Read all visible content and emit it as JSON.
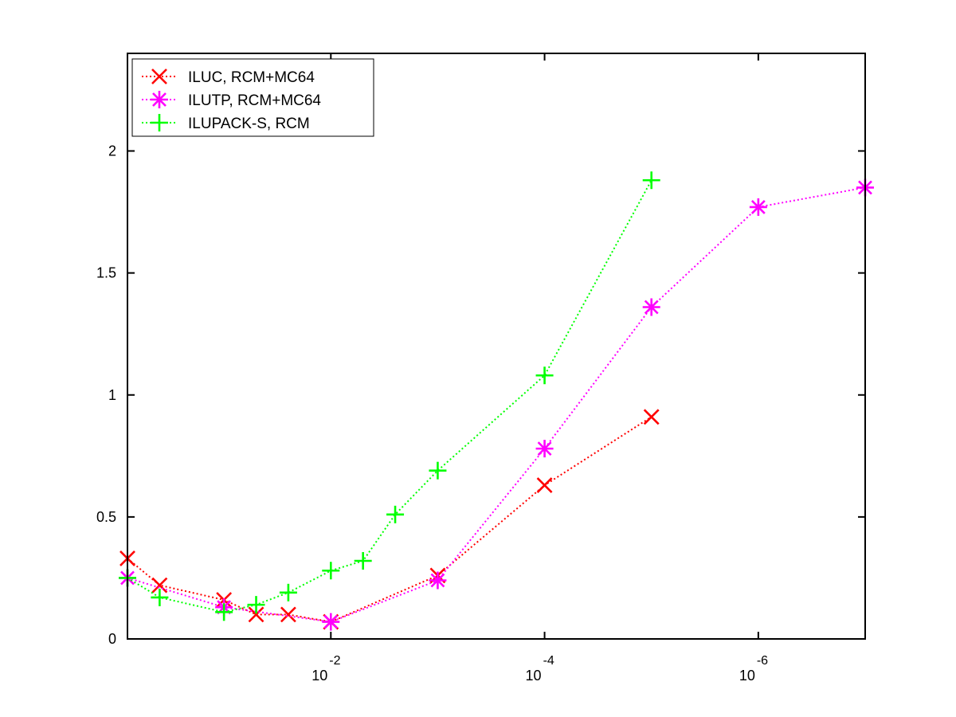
{
  "chart_data": {
    "type": "line",
    "x_scale": "log-reversed",
    "xlim": [
      0.8,
      1e-07
    ],
    "ylim": [
      0,
      2.4
    ],
    "x_ticks": [
      {
        "value": 0.01,
        "base": "10",
        "exponent": "-2"
      },
      {
        "value": 0.0001,
        "base": "10",
        "exponent": "-4"
      },
      {
        "value": 1e-06,
        "base": "10",
        "exponent": "-6"
      }
    ],
    "y_ticks": [
      {
        "value": 0,
        "label": "0"
      },
      {
        "value": 0.5,
        "label": "0.5"
      },
      {
        "value": 1,
        "label": "1"
      },
      {
        "value": 1.5,
        "label": "1.5"
      },
      {
        "value": 2,
        "label": "2"
      }
    ],
    "grid": false,
    "legend_position": "top-left",
    "series": [
      {
        "name": "ILUC, RCM+MC64",
        "color": "#ff0000",
        "marker": "x",
        "x": [
          0.8,
          0.4,
          0.1,
          0.05,
          0.025,
          0.01,
          0.001,
          0.0001,
          1e-05
        ],
        "y": [
          0.33,
          0.22,
          0.16,
          0.1,
          0.1,
          0.07,
          0.26,
          0.63,
          0.91
        ]
      },
      {
        "name": "ILUTP, RCM+MC64",
        "color": "#ff00ff",
        "marker": "asterisk",
        "x": [
          0.8,
          0.1,
          0.01,
          0.001,
          0.0001,
          1e-05,
          1e-06,
          1e-07
        ],
        "y": [
          0.25,
          0.13,
          0.07,
          0.24,
          0.78,
          1.36,
          1.77,
          1.85
        ]
      },
      {
        "name": "ILUPACK-S, RCM",
        "color": "#00ff00",
        "marker": "plus",
        "x": [
          0.8,
          0.4,
          0.1,
          0.05,
          0.025,
          0.01,
          0.005,
          0.0025,
          0.001,
          0.0001,
          1e-05
        ],
        "y": [
          0.25,
          0.17,
          0.11,
          0.14,
          0.19,
          0.28,
          0.32,
          0.51,
          0.69,
          1.08,
          1.88
        ]
      }
    ]
  }
}
